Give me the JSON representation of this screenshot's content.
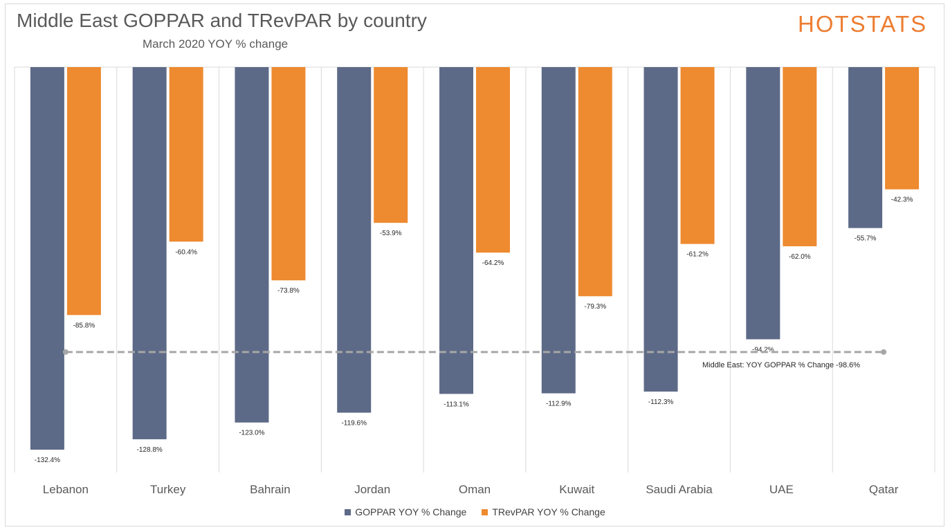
{
  "title": "Middle East GOPPAR and TRevPAR by country",
  "subtitle": "March 2020 YOY % change",
  "logo_text": "HOTSTATS",
  "colors": {
    "goppar": "#5d6a87",
    "trevpar": "#ee8a2f",
    "benchmark": "#a6a6a6",
    "logo": "#ed7d31"
  },
  "chart_data": {
    "type": "bar",
    "categories": [
      "Lebanon",
      "Turkey",
      "Bahrain",
      "Jordan",
      "Oman",
      "Kuwait",
      "Saudi Arabia",
      "UAE",
      "Qatar"
    ],
    "series": [
      {
        "name": "GOPPAR YOY % Change",
        "values": [
          -132.4,
          -128.8,
          -123.0,
          -119.6,
          -113.1,
          -112.9,
          -112.3,
          -94.2,
          -55.7
        ],
        "labels": [
          "-132.4%",
          "-128.8%",
          "-123.0%",
          "-119.6%",
          "-113.1%",
          "-112.9%",
          "-112.3%",
          "-94.2%",
          "-55.7%"
        ]
      },
      {
        "name": "TRevPAR YOY % Change",
        "values": [
          -85.8,
          -60.4,
          -73.8,
          -53.9,
          -64.2,
          -79.3,
          -61.2,
          -62.0,
          -42.3
        ],
        "labels": [
          "-85.8%",
          "-60.4%",
          "-73.8%",
          "-53.9%",
          "-64.2%",
          "-79.3%",
          "-61.2%",
          "-62.0%",
          "-42.3%"
        ]
      }
    ],
    "benchmark": {
      "value": -98.6,
      "label": "Middle East: YOY GOPPAR % Change -98.6%"
    },
    "ylim": [
      -140,
      0
    ],
    "grid": "vertical category separators",
    "legend": "bottom-center"
  }
}
